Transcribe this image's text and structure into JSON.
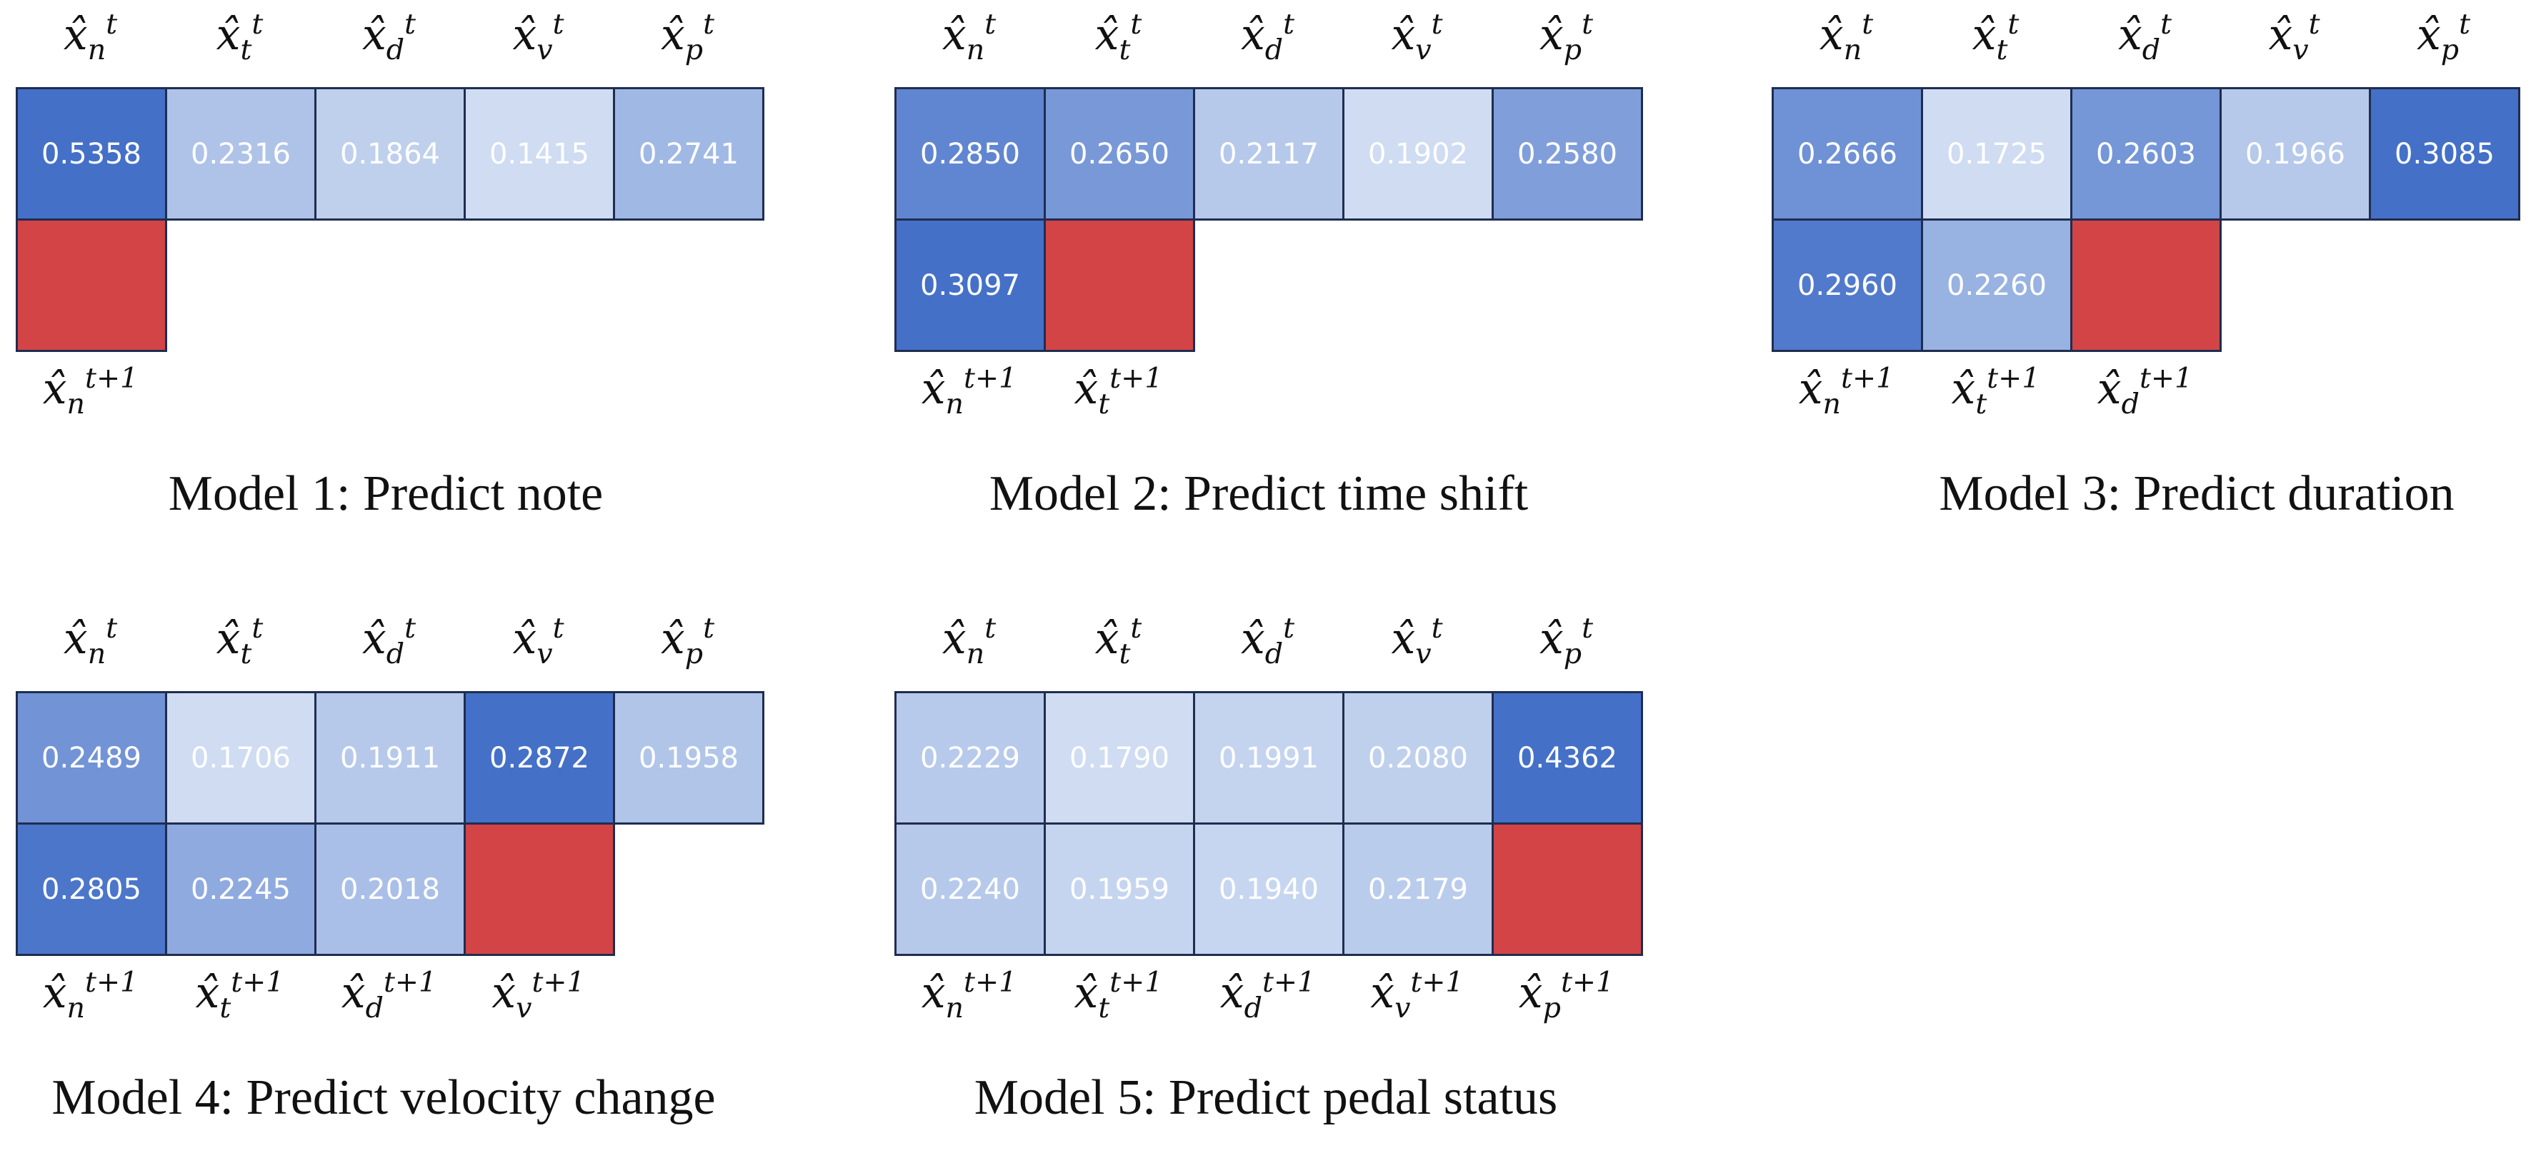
{
  "colors": {
    "target": "#d34447",
    "high": "#4470c8",
    "low": "#cfdcf2",
    "border": "#1f2d4f",
    "text": "#ffffff"
  },
  "panels": [
    {
      "caption": "Model 1: Predict note",
      "cols": [
        {
          "top": {
            "base": "x̂",
            "sub": "n",
            "sup": "t"
          },
          "val": "0.5358",
          "below": null,
          "bottom": {
            "base": "x̂",
            "sub": "n",
            "sup": "t+1"
          },
          "bottom_target": true
        },
        {
          "top": {
            "base": "x̂",
            "sub": "t",
            "sup": "t"
          },
          "val": "0.2316",
          "below": null,
          "bottom": null,
          "bottom_target": false
        },
        {
          "top": {
            "base": "x̂",
            "sub": "d",
            "sup": "t"
          },
          "val": "0.1864",
          "below": null,
          "bottom": null,
          "bottom_target": false
        },
        {
          "top": {
            "base": "x̂",
            "sub": "v",
            "sup": "t"
          },
          "val": "0.1415",
          "below": null,
          "bottom": null,
          "bottom_target": false
        },
        {
          "top": {
            "base": "x̂",
            "sub": "p",
            "sup": "t"
          },
          "val": "0.2741",
          "below": null,
          "bottom": null,
          "bottom_target": false
        }
      ]
    },
    {
      "caption": "Model 2: Predict time shift",
      "cols": [
        {
          "top": {
            "base": "x̂",
            "sub": "n",
            "sup": "t"
          },
          "val": "0.2850",
          "below": "0.3097",
          "bottom": {
            "base": "x̂",
            "sub": "n",
            "sup": "t+1"
          },
          "bottom_target": false
        },
        {
          "top": {
            "base": "x̂",
            "sub": "t",
            "sup": "t"
          },
          "val": "0.2650",
          "below": null,
          "bottom": {
            "base": "x̂",
            "sub": "t",
            "sup": "t+1"
          },
          "bottom_target": true
        },
        {
          "top": {
            "base": "x̂",
            "sub": "d",
            "sup": "t"
          },
          "val": "0.2117",
          "below": null,
          "bottom": null,
          "bottom_target": false
        },
        {
          "top": {
            "base": "x̂",
            "sub": "v",
            "sup": "t"
          },
          "val": "0.1902",
          "below": null,
          "bottom": null,
          "bottom_target": false
        },
        {
          "top": {
            "base": "x̂",
            "sub": "p",
            "sup": "t"
          },
          "val": "0.2580",
          "below": null,
          "bottom": null,
          "bottom_target": false
        }
      ]
    },
    {
      "caption": "Model 3: Predict duration",
      "cols": [
        {
          "top": {
            "base": "x̂",
            "sub": "n",
            "sup": "t"
          },
          "val": "0.2666",
          "below": "0.2960",
          "bottom": {
            "base": "x̂",
            "sub": "n",
            "sup": "t+1"
          },
          "bottom_target": false
        },
        {
          "top": {
            "base": "x̂",
            "sub": "t",
            "sup": "t"
          },
          "val": "0.1725",
          "below": "0.2260",
          "bottom": {
            "base": "x̂",
            "sub": "t",
            "sup": "t+1"
          },
          "bottom_target": false
        },
        {
          "top": {
            "base": "x̂",
            "sub": "d",
            "sup": "t"
          },
          "val": "0.2603",
          "below": null,
          "bottom": {
            "base": "x̂",
            "sub": "d",
            "sup": "t+1"
          },
          "bottom_target": true
        },
        {
          "top": {
            "base": "x̂",
            "sub": "v",
            "sup": "t"
          },
          "val": "0.1966",
          "below": null,
          "bottom": null,
          "bottom_target": false
        },
        {
          "top": {
            "base": "x̂",
            "sub": "p",
            "sup": "t"
          },
          "val": "0.3085",
          "below": null,
          "bottom": null,
          "bottom_target": false
        }
      ]
    },
    {
      "caption": "Model 4: Predict velocity change",
      "cols": [
        {
          "top": {
            "base": "x̂",
            "sub": "n",
            "sup": "t"
          },
          "val": "0.2489",
          "below": "0.2805",
          "bottom": {
            "base": "x̂",
            "sub": "n",
            "sup": "t+1"
          },
          "bottom_target": false
        },
        {
          "top": {
            "base": "x̂",
            "sub": "t",
            "sup": "t"
          },
          "val": "0.1706",
          "below": "0.2245",
          "bottom": {
            "base": "x̂",
            "sub": "t",
            "sup": "t+1"
          },
          "bottom_target": false
        },
        {
          "top": {
            "base": "x̂",
            "sub": "d",
            "sup": "t"
          },
          "val": "0.1911",
          "below": "0.2018",
          "bottom": {
            "base": "x̂",
            "sub": "d",
            "sup": "t+1"
          },
          "bottom_target": false
        },
        {
          "top": {
            "base": "x̂",
            "sub": "v",
            "sup": "t"
          },
          "val": "0.2872",
          "below": null,
          "bottom": {
            "base": "x̂",
            "sub": "v",
            "sup": "t+1"
          },
          "bottom_target": true
        },
        {
          "top": {
            "base": "x̂",
            "sub": "p",
            "sup": "t"
          },
          "val": "0.1958",
          "below": null,
          "bottom": null,
          "bottom_target": false
        }
      ]
    },
    {
      "caption": "Model 5: Predict pedal status",
      "cols": [
        {
          "top": {
            "base": "x̂",
            "sub": "n",
            "sup": "t"
          },
          "val": "0.2229",
          "below": "0.2240",
          "bottom": {
            "base": "x̂",
            "sub": "n",
            "sup": "t+1"
          },
          "bottom_target": false
        },
        {
          "top": {
            "base": "x̂",
            "sub": "t",
            "sup": "t"
          },
          "val": "0.1790",
          "below": "0.1959",
          "bottom": {
            "base": "x̂",
            "sub": "t",
            "sup": "t+1"
          },
          "bottom_target": false
        },
        {
          "top": {
            "base": "x̂",
            "sub": "d",
            "sup": "t"
          },
          "val": "0.1991",
          "below": "0.1940",
          "bottom": {
            "base": "x̂",
            "sub": "d",
            "sup": "t+1"
          },
          "bottom_target": false
        },
        {
          "top": {
            "base": "x̂",
            "sub": "v",
            "sup": "t"
          },
          "val": "0.2080",
          "below": "0.2179",
          "bottom": {
            "base": "x̂",
            "sub": "v",
            "sup": "t+1"
          },
          "bottom_target": false
        },
        {
          "top": {
            "base": "x̂",
            "sub": "p",
            "sup": "t"
          },
          "val": "0.4362",
          "below": null,
          "bottom": {
            "base": "x̂",
            "sub": "p",
            "sup": "t+1"
          },
          "bottom_target": true
        }
      ]
    }
  ]
}
